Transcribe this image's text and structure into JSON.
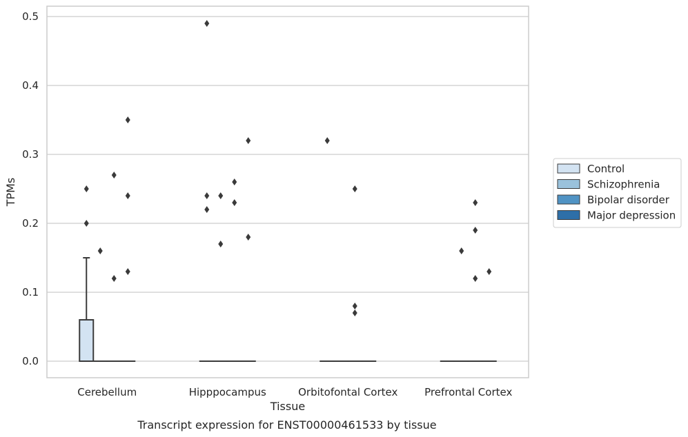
{
  "chart_data": {
    "type": "box",
    "title": "",
    "caption": "Transcript expression for ENST00000461533 by tissue",
    "xlabel": "Tissue",
    "ylabel": "TPMs",
    "ylim": [
      -0.024,
      0.515
    ],
    "yticks": [
      0.0,
      0.1,
      0.2,
      0.3,
      0.4,
      0.5
    ],
    "ytick_labels": [
      "0.0",
      "0.1",
      "0.2",
      "0.3",
      "0.4",
      "0.5"
    ],
    "grid": "y",
    "legend_position": "outside-right",
    "categories": [
      "Cerebellum",
      "Hipppocampus",
      "Orbitofontal Cortex",
      "Prefrontal Cortex"
    ],
    "series": [
      {
        "name": "Control",
        "color": "#d3e3f2",
        "boxes": [
          {
            "q1": 0.0,
            "median": 0.0,
            "q3": 0.06,
            "whisker_low": 0.0,
            "whisker_high": 0.15,
            "outliers": [
              0.25,
              0.2
            ]
          },
          {
            "q1": 0.0,
            "median": 0.0,
            "q3": 0.0,
            "whisker_low": 0.0,
            "whisker_high": 0.0,
            "outliers": [
              0.49,
              0.24,
              0.22
            ]
          },
          {
            "q1": 0.0,
            "median": 0.0,
            "q3": 0.0,
            "whisker_low": 0.0,
            "whisker_high": 0.0,
            "outliers": [
              0.32
            ]
          },
          {
            "q1": 0.0,
            "median": 0.0,
            "q3": 0.0,
            "whisker_low": 0.0,
            "whisker_high": 0.0,
            "outliers": []
          }
        ]
      },
      {
        "name": "Schizophrenia",
        "color": "#9ac2dc",
        "boxes": [
          {
            "q1": 0.0,
            "median": 0.0,
            "q3": 0.0,
            "whisker_low": 0.0,
            "whisker_high": 0.0,
            "outliers": [
              0.16
            ]
          },
          {
            "q1": 0.0,
            "median": 0.0,
            "q3": 0.0,
            "whisker_low": 0.0,
            "whisker_high": 0.0,
            "outliers": [
              0.24,
              0.17
            ]
          },
          {
            "q1": 0.0,
            "median": 0.0,
            "q3": 0.0,
            "whisker_low": 0.0,
            "whisker_high": 0.0,
            "outliers": []
          },
          {
            "q1": 0.0,
            "median": 0.0,
            "q3": 0.0,
            "whisker_low": 0.0,
            "whisker_high": 0.0,
            "outliers": [
              0.16
            ]
          }
        ]
      },
      {
        "name": "Bipolar disorder",
        "color": "#5093c4",
        "boxes": [
          {
            "q1": 0.0,
            "median": 0.0,
            "q3": 0.0,
            "whisker_low": 0.0,
            "whisker_high": 0.0,
            "outliers": [
              0.27,
              0.12
            ]
          },
          {
            "q1": 0.0,
            "median": 0.0,
            "q3": 0.0,
            "whisker_low": 0.0,
            "whisker_high": 0.0,
            "outliers": [
              0.26,
              0.23
            ]
          },
          {
            "q1": 0.0,
            "median": 0.0,
            "q3": 0.0,
            "whisker_low": 0.0,
            "whisker_high": 0.0,
            "outliers": [
              0.25,
              0.08,
              0.07
            ]
          },
          {
            "q1": 0.0,
            "median": 0.0,
            "q3": 0.0,
            "whisker_low": 0.0,
            "whisker_high": 0.0,
            "outliers": [
              0.23,
              0.19,
              0.12
            ]
          }
        ]
      },
      {
        "name": "Major depression",
        "color": "#2e6fa8",
        "boxes": [
          {
            "q1": 0.0,
            "median": 0.0,
            "q3": 0.0,
            "whisker_low": 0.0,
            "whisker_high": 0.0,
            "outliers": [
              0.35,
              0.24,
              0.13
            ]
          },
          {
            "q1": 0.0,
            "median": 0.0,
            "q3": 0.0,
            "whisker_low": 0.0,
            "whisker_high": 0.0,
            "outliers": [
              0.32,
              0.18
            ]
          },
          {
            "q1": 0.0,
            "median": 0.0,
            "q3": 0.0,
            "whisker_low": 0.0,
            "whisker_high": 0.0,
            "outliers": []
          },
          {
            "q1": 0.0,
            "median": 0.0,
            "q3": 0.0,
            "whisker_low": 0.0,
            "whisker_high": 0.0,
            "outliers": [
              0.13
            ]
          }
        ]
      }
    ]
  }
}
